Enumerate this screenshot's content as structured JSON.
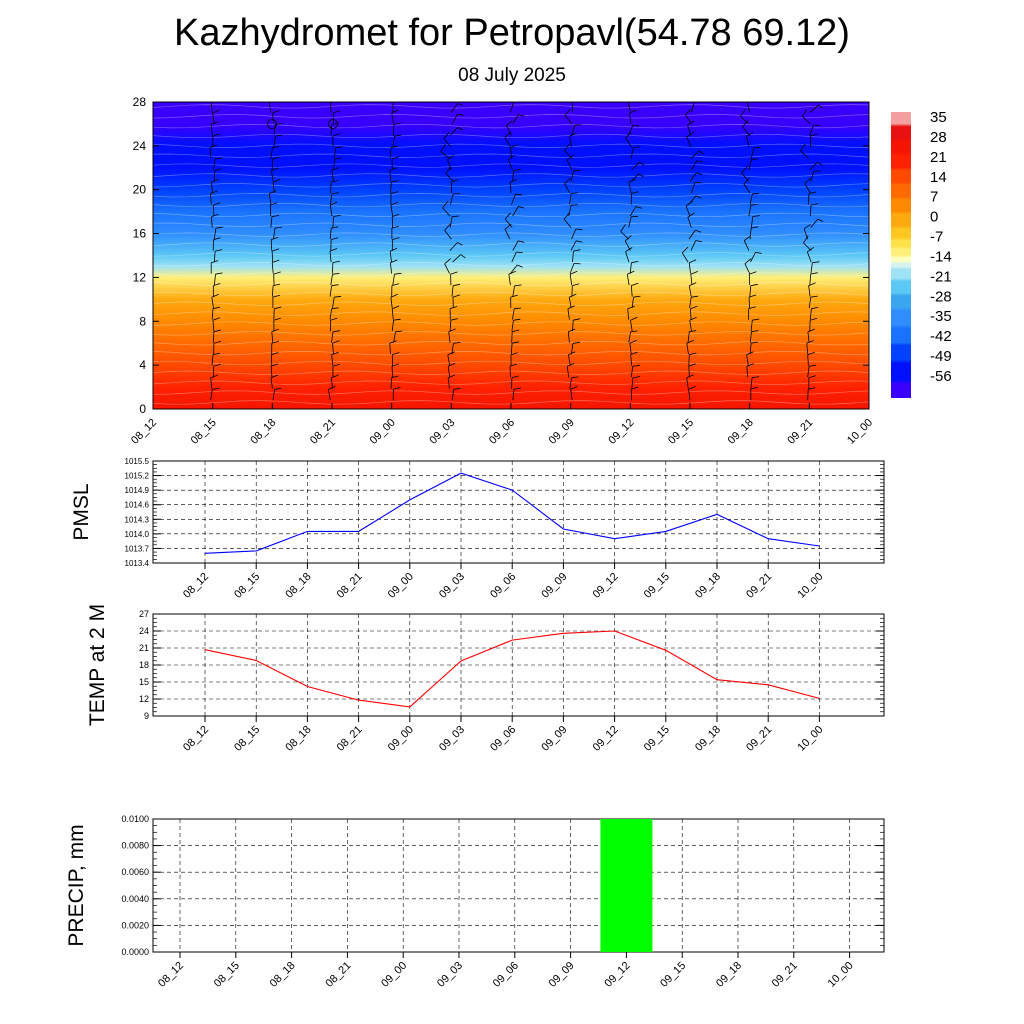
{
  "title": "Kazhydromet for Petropavl(54.78 69.12)",
  "subtitle": "08 July 2025",
  "colors": {
    "pmsl_line": "#0000ff",
    "temp_line": "#ff0000",
    "precip_bar": "#00ff00",
    "grid": "#000000"
  },
  "chart_data": [
    {
      "type": "heatmap",
      "name": "upper-air-cross-section",
      "x_ticks": [
        "08_12",
        "08_15",
        "08_18",
        "08_21",
        "09_00",
        "09_03",
        "09_06",
        "09_09",
        "09_12",
        "09_15",
        "09_18",
        "09_21",
        "10_00"
      ],
      "y_ticks": [
        "0",
        "4",
        "8",
        "12",
        "16",
        "20",
        "24",
        "28"
      ],
      "ylim": [
        0,
        28
      ],
      "colorbar_labels": [
        "35",
        "28",
        "21",
        "14",
        "7",
        "0",
        "-7",
        "-14",
        "-21",
        "-28",
        "-35",
        "-42",
        "-49",
        "-56"
      ],
      "colorbar_range": [
        -60,
        38
      ],
      "temperature_profile": {
        "heights": [
          0,
          2,
          4,
          6,
          8,
          10,
          12,
          13,
          14,
          16,
          18,
          20,
          22,
          24,
          26,
          28
        ],
        "values": [
          25,
          21,
          17,
          12,
          6,
          0,
          -10,
          -18,
          -24,
          -32,
          -40,
          -44,
          -48,
          -50,
          -55,
          -58
        ]
      },
      "overlay": "wind barbs"
    },
    {
      "type": "line",
      "ylabel": "PMSL",
      "categories": [
        "08_12",
        "08_15",
        "08_18",
        "08_21",
        "09_00",
        "09_03",
        "09_06",
        "09_09",
        "09_12",
        "09_15",
        "09_18",
        "09_21",
        "10_00"
      ],
      "values": [
        1013.6,
        1013.65,
        1014.05,
        1014.05,
        1014.7,
        1015.25,
        1014.9,
        1014.1,
        1013.9,
        1014.05,
        1014.4,
        1013.9,
        1013.75
      ],
      "y_ticks": [
        "1013.4",
        "1013.7",
        "1014.0",
        "1014.3",
        "1014.6",
        "1014.9",
        "1015.2",
        "1015.5"
      ],
      "ylim": [
        1013.4,
        1015.5
      ],
      "grid": true
    },
    {
      "type": "line",
      "ylabel": "TEMP at 2 M",
      "categories": [
        "08_12",
        "08_15",
        "08_18",
        "08_21",
        "09_00",
        "09_03",
        "09_06",
        "09_09",
        "09_12",
        "09_15",
        "09_18",
        "09_21",
        "10_00"
      ],
      "values": [
        20.7,
        18.8,
        14.2,
        11.8,
        10.6,
        18.7,
        22.4,
        23.6,
        24.0,
        20.6,
        15.4,
        14.5,
        12.1
      ],
      "y_ticks": [
        "9",
        "12",
        "15",
        "18",
        "21",
        "24",
        "27"
      ],
      "ylim": [
        9,
        27
      ],
      "grid": true
    },
    {
      "type": "bar",
      "ylabel": "PRECIP, mm",
      "categories": [
        "08_12",
        "08_15",
        "08_18",
        "08_21",
        "09_00",
        "09_03",
        "09_06",
        "09_09",
        "09_12",
        "09_15",
        "09_18",
        "09_21",
        "10_00"
      ],
      "values": [
        0,
        0,
        0,
        0,
        0,
        0,
        0,
        0,
        0.01,
        0,
        0,
        0,
        0
      ],
      "y_ticks": [
        "0.0000",
        "0.0020",
        "0.0040",
        "0.0060",
        "0.0080",
        "0.0100"
      ],
      "ylim": [
        0,
        0.01
      ],
      "grid": true
    }
  ]
}
